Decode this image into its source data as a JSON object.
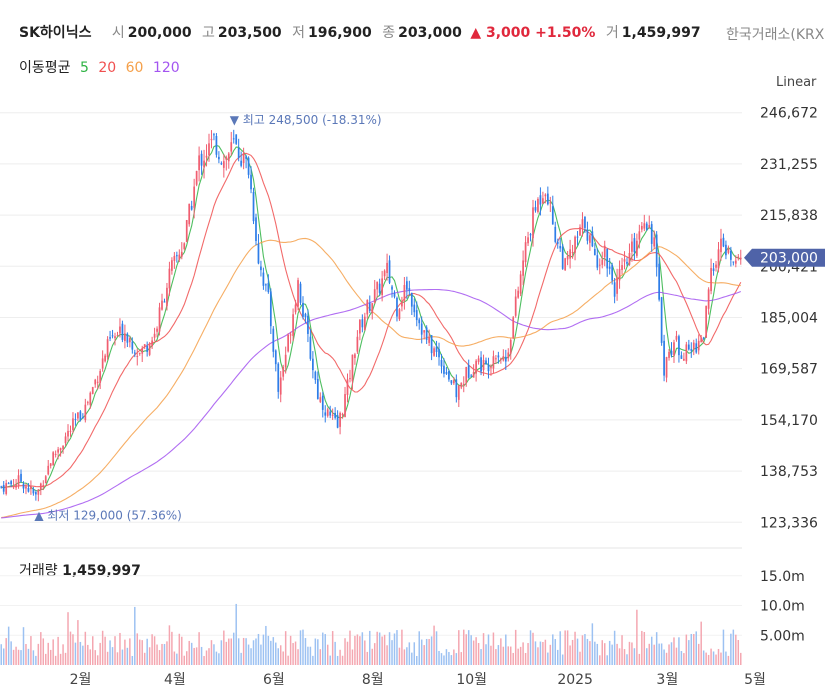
{
  "header": {
    "name": "SK하이닉스",
    "open_label": "시",
    "open": "200,000",
    "high_label": "고",
    "high": "203,500",
    "low_label": "저",
    "low": "196,900",
    "close_label": "종",
    "close": "203,000",
    "change": "▲ 3,000 +1.50%",
    "volume_label": "거",
    "volume": "1,459,997",
    "exchange": "한국거래소(KRX)"
  },
  "moving_average": {
    "label": "이동평균",
    "periods": [
      {
        "label": "5",
        "color": "#2fb344"
      },
      {
        "label": "20",
        "color": "#f05050"
      },
      {
        "label": "60",
        "color": "#f5a04a"
      },
      {
        "label": "120",
        "color": "#a355f0"
      }
    ]
  },
  "scale_mode": "Linear",
  "colors": {
    "up": "#f05e70",
    "down": "#2e7de8",
    "price_tag": "#4f63a8",
    "annotation": "#5b78b8"
  },
  "chart_data": {
    "type": "candlestick",
    "x_tick_labels": [
      "2월",
      "4월",
      "6월",
      "8월",
      "10월",
      "2025",
      "3월",
      "5월"
    ],
    "y_tick_labels": [
      "246,672",
      "231,255",
      "215,838",
      "200,421",
      "185,004",
      "169,587",
      "154,170",
      "138,753",
      "123,336"
    ],
    "y_ticks": [
      246672,
      231255,
      215838,
      200421,
      185004,
      169587,
      154170,
      138753,
      123336
    ],
    "ylim": [
      118000,
      252000
    ],
    "last_price": 203000,
    "last_price_label": "203,000",
    "high_annotation": "최고 248,500 (-18.31%)",
    "low_annotation": "최저 129,000 (57.36%)",
    "volume": {
      "title": "거래량",
      "last_label": "1,459,997",
      "y_tick_labels": [
        "15.0m",
        "10.0m",
        "5.00m"
      ],
      "y_ticks": [
        15000000,
        10000000,
        5000000
      ],
      "ylim": [
        0,
        19000000
      ]
    },
    "close_keypoints": [
      [
        0,
        134000
      ],
      [
        8,
        136000
      ],
      [
        14,
        131000
      ],
      [
        20,
        142000
      ],
      [
        26,
        149000
      ],
      [
        34,
        158000
      ],
      [
        44,
        178000
      ],
      [
        50,
        181000
      ],
      [
        56,
        174000
      ],
      [
        62,
        180000
      ],
      [
        68,
        198000
      ],
      [
        74,
        208000
      ],
      [
        80,
        232000
      ],
      [
        86,
        238000
      ],
      [
        90,
        232000
      ],
      [
        94,
        237000
      ],
      [
        100,
        230000
      ],
      [
        104,
        203000
      ],
      [
        108,
        190000
      ],
      [
        112,
        163000
      ],
      [
        116,
        178000
      ],
      [
        120,
        196000
      ],
      [
        124,
        178000
      ],
      [
        128,
        162000
      ],
      [
        132,
        156000
      ],
      [
        136,
        152000
      ],
      [
        140,
        164000
      ],
      [
        144,
        180000
      ],
      [
        148,
        188000
      ],
      [
        152,
        193000
      ],
      [
        156,
        199000
      ],
      [
        160,
        188000
      ],
      [
        164,
        195000
      ],
      [
        168,
        186000
      ],
      [
        172,
        178000
      ],
      [
        176,
        174000
      ],
      [
        180,
        169000
      ],
      [
        184,
        162000
      ],
      [
        188,
        168000
      ],
      [
        192,
        172000
      ],
      [
        196,
        170000
      ],
      [
        200,
        175000
      ],
      [
        204,
        172000
      ],
      [
        208,
        189000
      ],
      [
        212,
        206000
      ],
      [
        216,
        218000
      ],
      [
        220,
        225000
      ],
      [
        224,
        210000
      ],
      [
        228,
        200000
      ],
      [
        232,
        207000
      ],
      [
        236,
        214000
      ],
      [
        240,
        202000
      ],
      [
        244,
        205000
      ],
      [
        248,
        194000
      ],
      [
        252,
        200000
      ],
      [
        256,
        207000
      ],
      [
        260,
        216000
      ],
      [
        264,
        208000
      ],
      [
        266,
        188000
      ],
      [
        268,
        170000
      ],
      [
        272,
        178000
      ],
      [
        276,
        174000
      ],
      [
        280,
        176000
      ],
      [
        284,
        180000
      ],
      [
        286,
        192000
      ],
      [
        288,
        202000
      ],
      [
        292,
        207000
      ],
      [
        296,
        200000
      ],
      [
        299,
        203000
      ]
    ]
  }
}
